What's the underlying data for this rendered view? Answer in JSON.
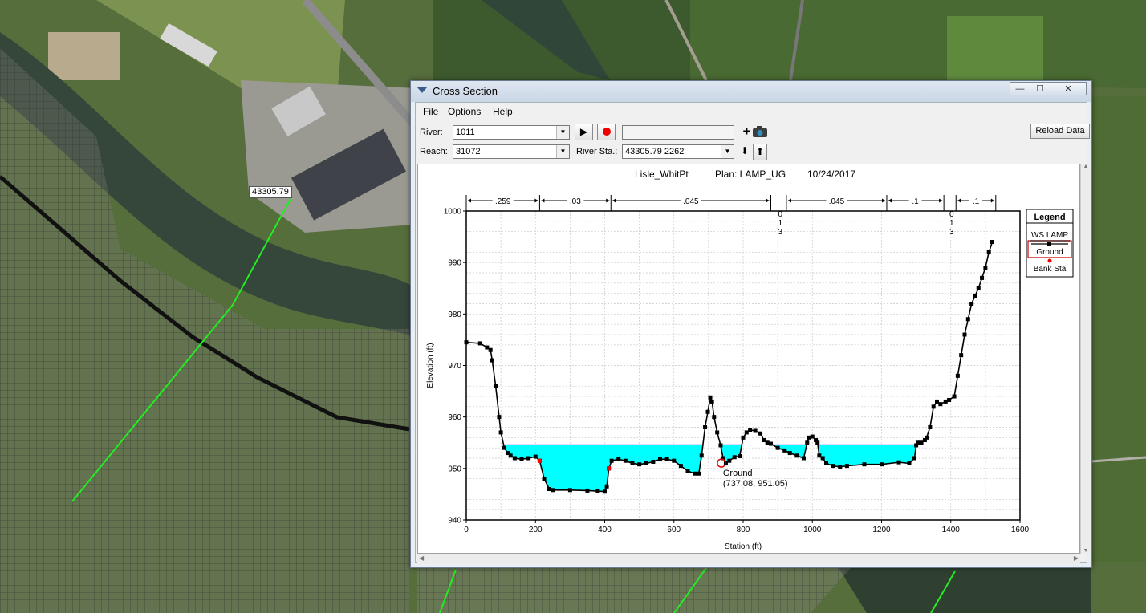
{
  "map": {
    "xs_label": "43305.79"
  },
  "window": {
    "title": "Cross Section",
    "min_glyph": "—",
    "max_glyph": "☐",
    "close_glyph": "✕"
  },
  "menu": {
    "file": "File",
    "options": "Options",
    "help": "Help"
  },
  "controls": {
    "river_label": "River:",
    "river_value": "1011",
    "reach_label": "Reach:",
    "reach_value": "31072",
    "river_sta_label": "River Sta.:",
    "river_sta_value": "43305.79  2262",
    "reload_label": "Reload Data",
    "play_glyph": "▶",
    "plus_glyph": "+",
    "down_glyph": "⬇",
    "up_glyph": "⬆"
  },
  "plot": {
    "title_left": "Lisle_WhitPt",
    "title_plan": "Plan: LAMP_UG",
    "title_date": "10/24/2017",
    "legend_title": "Legend",
    "legend_items": [
      "WS LAMP",
      "Ground",
      "Bank Sta"
    ],
    "tooltip_line1": "Ground",
    "tooltip_line2": "(737.08, 951.05)",
    "colors": {
      "water": "#00ffff",
      "ground": "#000000",
      "bank": "#ff0000",
      "ws_line": "#0000ff"
    }
  },
  "chart_data": {
    "type": "line",
    "xlabel": "Station (ft)",
    "ylabel": "Elevation (ft)",
    "xlim": [
      0,
      1600
    ],
    "ylim": [
      940,
      1000
    ],
    "xticks": [
      0,
      200,
      400,
      600,
      800,
      1000,
      1200,
      1400,
      1600
    ],
    "yticks": [
      940,
      950,
      960,
      970,
      980,
      990,
      1000
    ],
    "grid": true,
    "legend_position": "right",
    "series": [
      {
        "name": "Ground",
        "x": [
          0,
          40,
          60,
          70,
          75,
          85,
          95,
          100,
          110,
          120,
          128,
          140,
          160,
          180,
          200,
          212,
          225,
          240,
          250,
          300,
          350,
          380,
          400,
          406,
          412,
          420,
          440,
          460,
          480,
          500,
          520,
          540,
          560,
          580,
          600,
          620,
          640,
          660,
          672,
          680,
          690,
          698,
          705,
          710,
          716,
          725,
          735,
          742,
          750,
          760,
          775,
          790,
          800,
          810,
          820,
          835,
          850,
          860,
          870,
          880,
          900,
          920,
          935,
          955,
          975,
          985,
          990,
          1000,
          1010,
          1015,
          1020,
          1030,
          1040,
          1060,
          1080,
          1100,
          1150,
          1200,
          1250,
          1280,
          1295,
          1300,
          1305,
          1315,
          1325,
          1330,
          1340,
          1350,
          1360,
          1370,
          1385,
          1395,
          1410,
          1420,
          1430,
          1440,
          1450,
          1460,
          1470,
          1480,
          1490,
          1500,
          1510,
          1520
        ],
        "y": [
          974.5,
          974.3,
          973.5,
          973.0,
          971.0,
          966.0,
          960.0,
          957.0,
          954.0,
          953.0,
          952.5,
          952.0,
          951.8,
          952.0,
          952.3,
          951.5,
          948.0,
          946.0,
          945.8,
          945.8,
          945.7,
          945.6,
          945.5,
          946.5,
          950.0,
          951.5,
          951.8,
          951.5,
          951.0,
          950.8,
          951.0,
          951.3,
          951.8,
          951.8,
          951.5,
          950.5,
          949.5,
          949.0,
          949.0,
          952.5,
          958.0,
          961.0,
          963.8,
          963.0,
          960.0,
          957.0,
          954.5,
          952.0,
          951.0,
          951.5,
          952.2,
          952.4,
          956.0,
          957.0,
          957.5,
          957.3,
          956.8,
          955.5,
          955.0,
          954.8,
          954.0,
          953.5,
          953.0,
          952.5,
          952.0,
          955.0,
          956.0,
          956.2,
          955.5,
          955.0,
          952.5,
          952.0,
          951.0,
          950.5,
          950.3,
          950.5,
          950.8,
          950.8,
          951.2,
          951.0,
          952.0,
          954.5,
          955.0,
          955.0,
          955.5,
          956.0,
          958.0,
          962.0,
          963.0,
          962.5,
          963.0,
          963.3,
          964.0,
          968.0,
          972.0,
          976.0,
          979.0,
          982.0,
          983.5,
          985.0,
          987.0,
          989.0,
          992.0,
          994.0
        ]
      }
    ],
    "bank_stations": [
      {
        "x": 212,
        "y": 951.5
      },
      {
        "x": 412,
        "y": 950.0
      }
    ],
    "ws_elevation": 954.6,
    "manning_n": [
      ".259",
      ".03",
      ".045",
      ".045",
      ".1",
      ".1"
    ],
    "manning_breaks": [
      0,
      212,
      418,
      880,
      925,
      1215,
      1380,
      1415,
      1530
    ],
    "lateral_structure_marks": [
      {
        "x": 905,
        "lines": [
          "0",
          "1",
          "3"
        ]
      },
      {
        "x": 1400,
        "lines": [
          "0",
          "1",
          "3"
        ]
      }
    ]
  }
}
